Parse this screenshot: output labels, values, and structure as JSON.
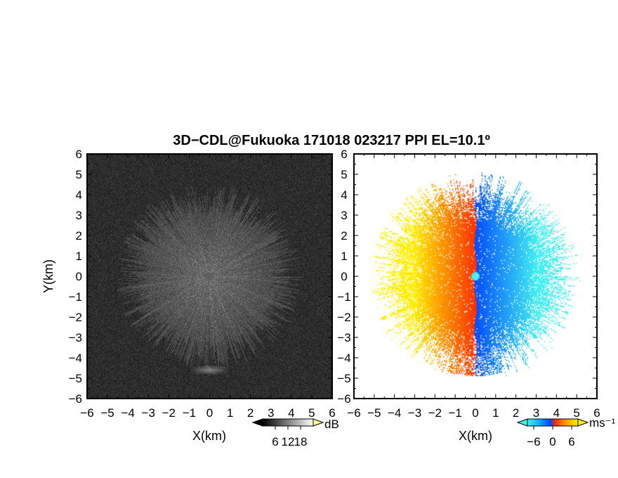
{
  "chart_data": [
    {
      "type": "heatmap",
      "title": "3D−CDL@Fukuoka 171018 023217 PPI EL=10.1º",
      "panel": "left",
      "quantity": "reflectivity (grayscale)",
      "xlabel": "X(km)",
      "ylabel": "Y(km)",
      "xlim": [
        -6,
        6
      ],
      "ylim": [
        -6,
        6
      ],
      "xticks": [
        "−6",
        "−5",
        "−4",
        "−3",
        "−2",
        "−1",
        "0",
        "1",
        "2",
        "3",
        "4",
        "5",
        "6"
      ],
      "yticks": [
        "6",
        "5",
        "4",
        "3",
        "2",
        "1",
        "0",
        "−1",
        "−2",
        "−3",
        "−4",
        "−5",
        "−6"
      ],
      "colorbar": {
        "unit": "dB",
        "ticks": [
          "6",
          "12",
          "18"
        ],
        "range": [
          0,
          24
        ]
      },
      "echo_radius_km": 3.8,
      "bright_arc_center_y_km": -4.6
    },
    {
      "type": "heatmap",
      "panel": "right",
      "quantity": "Doppler velocity",
      "xlabel": "X(km)",
      "ylabel": "",
      "xlim": [
        -6,
        6
      ],
      "ylim": [
        -6,
        6
      ],
      "xticks": [
        "−6",
        "−5",
        "−4",
        "−3",
        "−2",
        "−1",
        "0",
        "1",
        "2",
        "3",
        "4",
        "5",
        "6"
      ],
      "colorbar": {
        "unit": "ms⁻¹",
        "ticks": [
          "−6",
          "0",
          "6"
        ],
        "range": [
          -8,
          8
        ]
      },
      "velocity_sign": "negative east of radar (blue/cyan), positive west (red/orange/yellow)"
    }
  ],
  "colors": {
    "neg_far": "#40f0f0",
    "neg_near": "#0046ff",
    "pos_near": "#ff2800",
    "pos_far": "#ffee00",
    "axis": "#000000"
  }
}
